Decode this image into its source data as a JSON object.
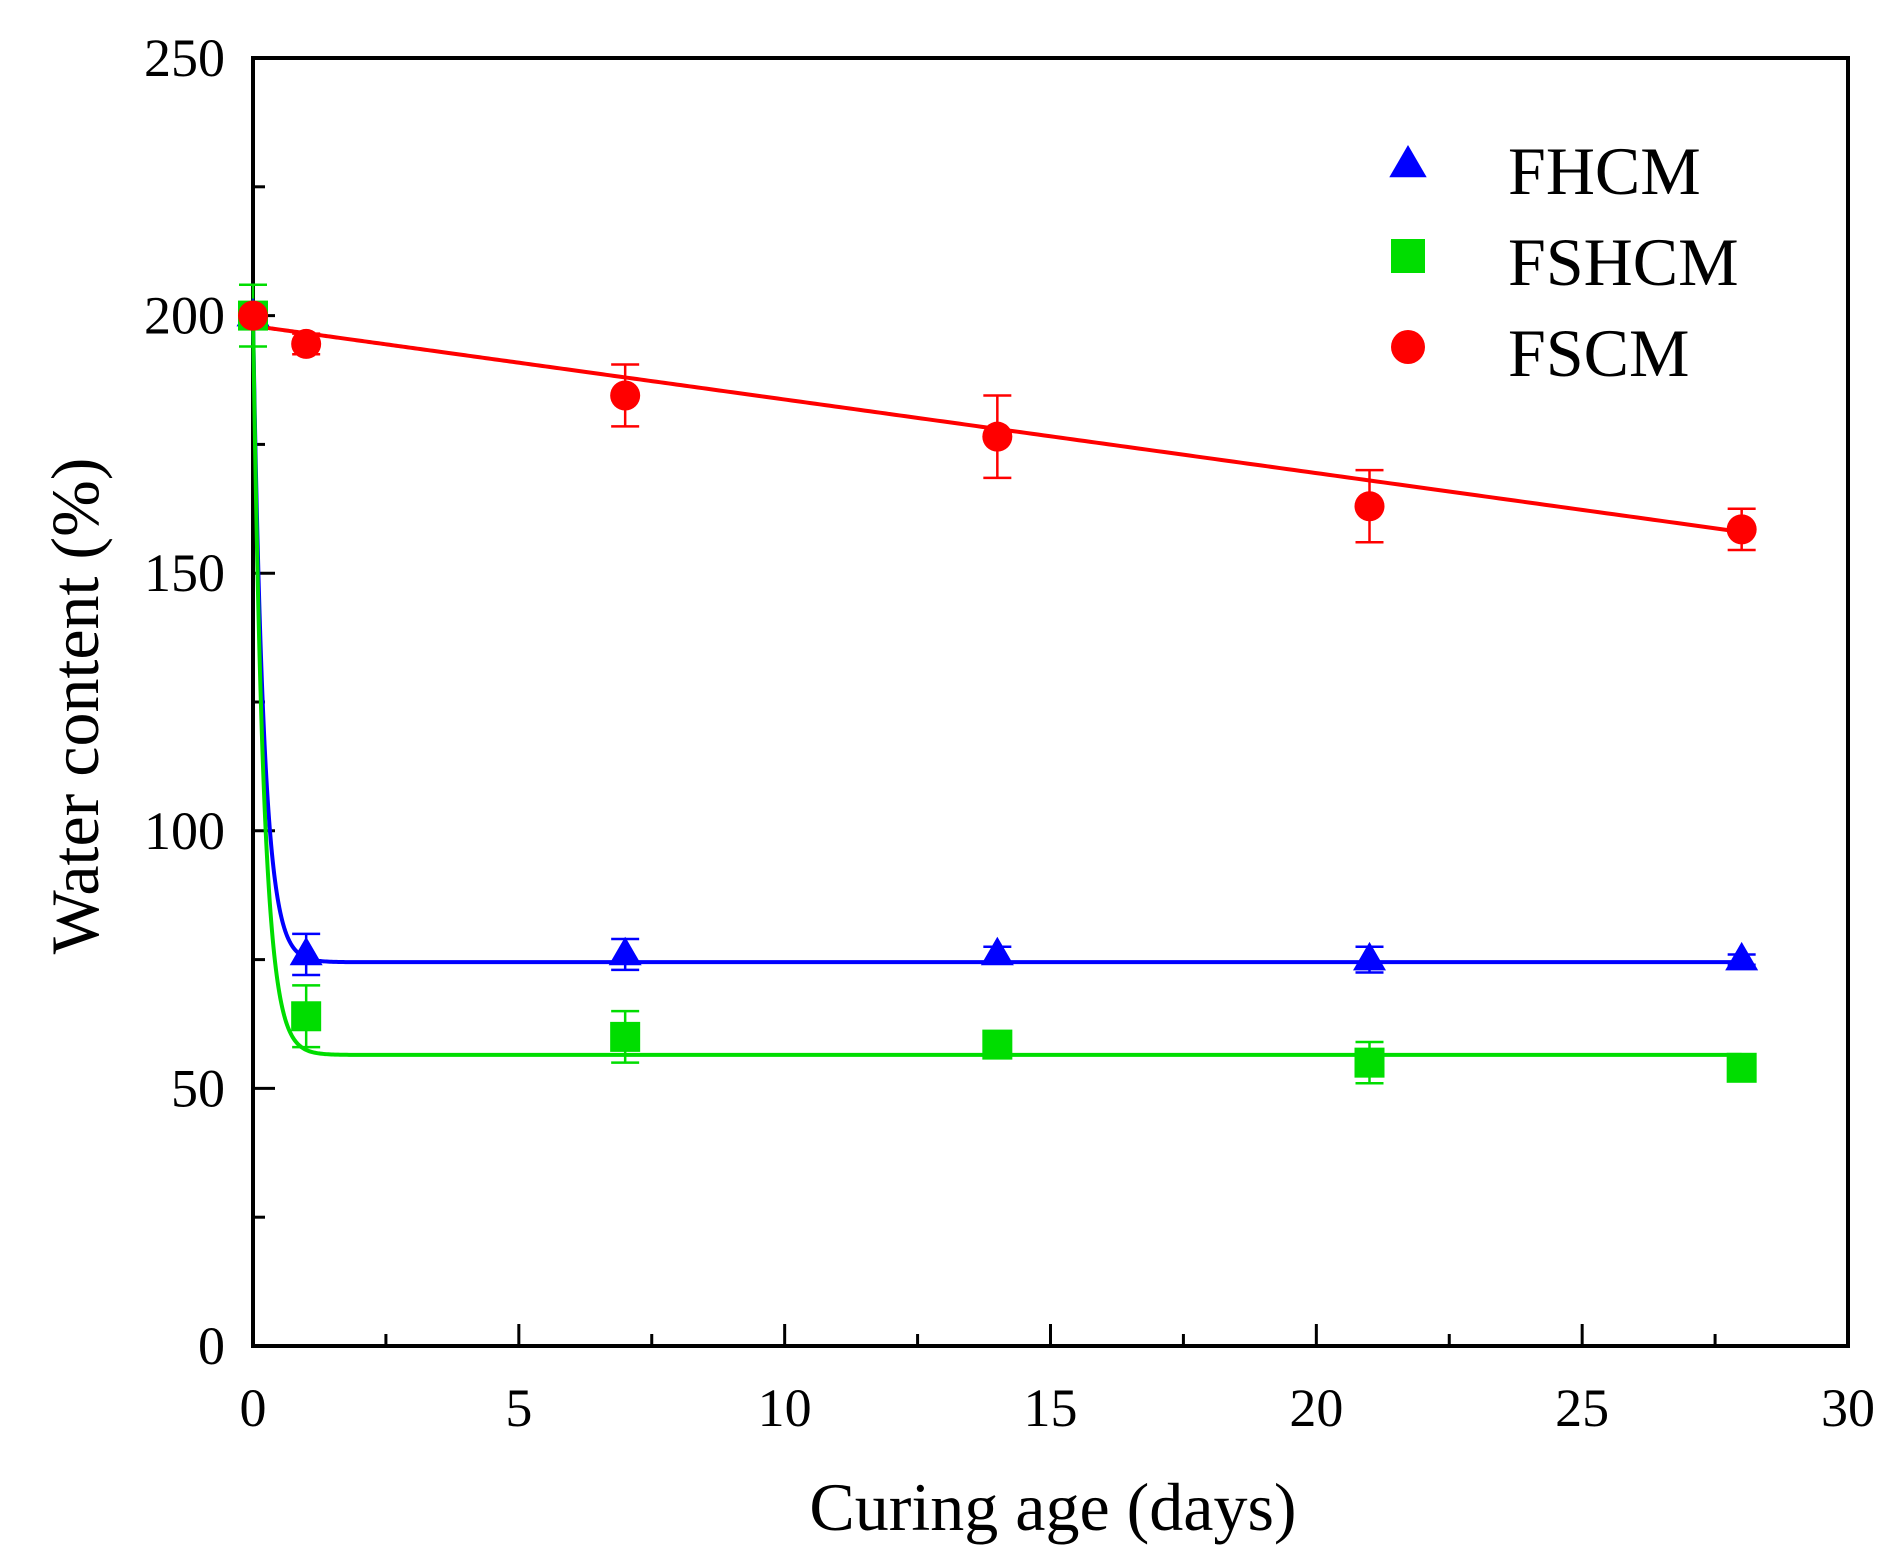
{
  "chart_data": {
    "type": "scatter",
    "xlabel": "Curing age (days)",
    "ylabel": "Water content (%)",
    "xlim": [
      0,
      30
    ],
    "ylim": [
      0,
      250
    ],
    "xticks": [
      0,
      5,
      10,
      15,
      20,
      25,
      30
    ],
    "yticks": [
      0,
      50,
      100,
      150,
      200,
      250
    ],
    "grid": false,
    "legend_position": "top-right",
    "series": [
      {
        "name": "FHCM",
        "marker": "triangle",
        "color": "#0000ff",
        "points": [
          {
            "x": 0,
            "y": 200,
            "err": 2
          },
          {
            "x": 1,
            "y": 76,
            "err": 4
          },
          {
            "x": 7,
            "y": 76,
            "err": 3
          },
          {
            "x": 14,
            "y": 76,
            "err": 1.5
          },
          {
            "x": 21,
            "y": 75,
            "err": 2.5
          },
          {
            "x": 28,
            "y": 75,
            "err": 1
          }
        ],
        "fit": {
          "plateau": 74.5,
          "start": 200,
          "decay_days": 0.2
        }
      },
      {
        "name": "FSHCM",
        "marker": "square",
        "color": "#00dd00",
        "points": [
          {
            "x": 0,
            "y": 200,
            "err": 6
          },
          {
            "x": 1,
            "y": 64,
            "err": 6
          },
          {
            "x": 7,
            "y": 60,
            "err": 5
          },
          {
            "x": 14,
            "y": 58.5,
            "err": 1.5
          },
          {
            "x": 21,
            "y": 55,
            "err": 4
          },
          {
            "x": 28,
            "y": 54,
            "err": 1
          }
        ],
        "fit": {
          "plateau": 56.5,
          "start": 200,
          "decay_days": 0.2
        }
      },
      {
        "name": "FSCM",
        "marker": "circle",
        "color": "#ff0000",
        "points": [
          {
            "x": 0,
            "y": 200,
            "err": 2
          },
          {
            "x": 1,
            "y": 194.5,
            "err": 2
          },
          {
            "x": 7,
            "y": 184.5,
            "err": 6
          },
          {
            "x": 14,
            "y": 176.5,
            "err": 8
          },
          {
            "x": 21,
            "y": 163,
            "err": 7
          },
          {
            "x": 28,
            "y": 158.5,
            "err": 4
          }
        ],
        "fit": {
          "start": 198,
          "end": 158
        }
      }
    ]
  }
}
